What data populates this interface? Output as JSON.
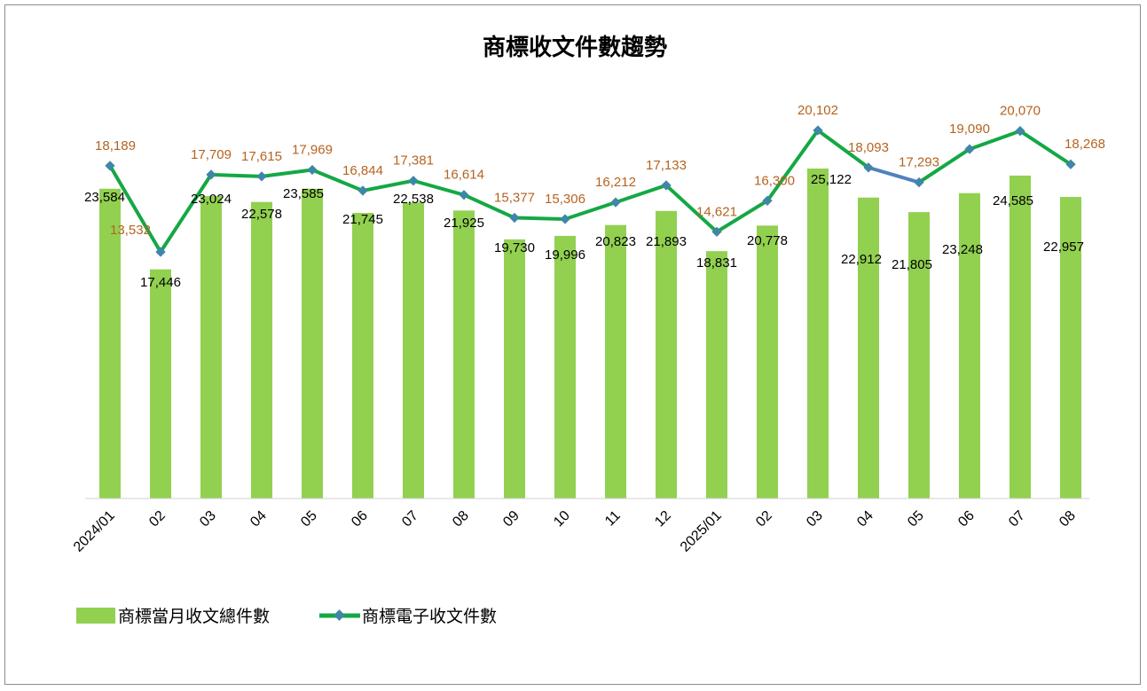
{
  "chart_data": {
    "type": "bar",
    "title": "商標收文件數趨勢",
    "categories": [
      "2024/01",
      "02",
      "03",
      "04",
      "05",
      "06",
      "07",
      "08",
      "09",
      "10",
      "11",
      "12",
      "2025/01",
      "02",
      "03",
      "04",
      "05",
      "06",
      "07",
      "08"
    ],
    "series": [
      {
        "name": "商標當月收文總件數",
        "type": "bar",
        "color": "#92d050",
        "values": [
          23584,
          17446,
          23024,
          22578,
          23585,
          21745,
          22538,
          21925,
          19730,
          19996,
          20823,
          21893,
          18831,
          20778,
          25122,
          22912,
          21805,
          23248,
          24585,
          22957
        ],
        "labels": [
          "23,584",
          "17,446",
          "23,024",
          "22,578",
          "23,585",
          "21,745",
          "22,538",
          "21,925",
          "19,730",
          "19,996",
          "20,823",
          "21,893",
          "18,831",
          "20,778",
          "25,122",
          "22,912",
          "21,805",
          "23,248",
          "24,585",
          "22,957"
        ]
      },
      {
        "name": "商標電子收文件數",
        "type": "line",
        "color": "#14a844",
        "marker_color": "#3f86a8",
        "highlight_segment_color": "#4f81bd",
        "values": [
          18189,
          13532,
          17709,
          17615,
          17969,
          16844,
          17381,
          16614,
          15377,
          15306,
          16212,
          17133,
          14621,
          16300,
          20102,
          18093,
          17293,
          19090,
          20070,
          18268
        ],
        "labels": [
          "18,189",
          "13,532",
          "17,709",
          "17,615",
          "17,969",
          "16,844",
          "17,381",
          "16,614",
          "15,377",
          "15,306",
          "16,212",
          "17,133",
          "14,621",
          "16,300",
          "20,102",
          "18,093",
          "17,293",
          "19,090",
          "20,070",
          "18,268"
        ]
      }
    ],
    "legend_position": "bottom-left",
    "grid": false
  }
}
